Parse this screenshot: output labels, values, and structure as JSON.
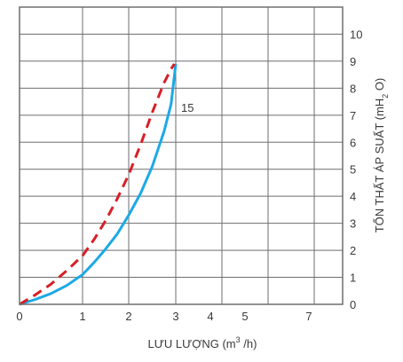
{
  "chart_data": {
    "type": "line",
    "title": "",
    "xlabel": "LƯU LƯỢNG (m³/h)",
    "xlabel_parts": {
      "pre": "LƯU LƯỢNG (m",
      "sup": "3",
      "post": " /h)"
    },
    "ylabel": "TỔN THẤT ÁP SUẤT (mH₂O)",
    "ylabel_parts": {
      "pre": "TỔN THẤT ÁP SUẤT (mH",
      "sub": "2",
      "post": " O)"
    },
    "x_scale": "nonlinear",
    "x_ticks": [
      {
        "label": "0",
        "value": 0
      },
      {
        "label": "1",
        "value": 1
      },
      {
        "label": "2",
        "value": 2
      },
      {
        "label": "3",
        "value": 3
      },
      {
        "label": "4",
        "value": 4
      },
      {
        "label": "5",
        "value": 5
      },
      {
        "label": "7",
        "value": 7
      }
    ],
    "y_ticks": [
      "0",
      "1",
      "2",
      "3",
      "4",
      "5",
      "6",
      "7",
      "8",
      "9",
      "10"
    ],
    "ylim": [
      0,
      11
    ],
    "y_axis_side": "right",
    "grid": true,
    "series": [
      {
        "name": "15",
        "color": "#1ca9e6",
        "style": "solid",
        "x": [
          0,
          0.25,
          0.5,
          0.75,
          1.0,
          1.25,
          1.5,
          1.75,
          2.0,
          2.25,
          2.5,
          2.75,
          2.9,
          3.0
        ],
        "y": [
          0,
          0.18,
          0.4,
          0.7,
          1.1,
          1.55,
          2.05,
          2.6,
          3.3,
          4.1,
          5.1,
          6.4,
          7.4,
          8.9
        ]
      },
      {
        "name": "",
        "color": "#d81f26",
        "style": "dashed",
        "x": [
          0,
          0.25,
          0.5,
          0.75,
          1.0,
          1.25,
          1.5,
          1.75,
          2.0,
          2.25,
          2.5,
          2.75,
          2.9,
          2.97
        ],
        "y": [
          0,
          0.35,
          0.75,
          1.25,
          1.8,
          2.4,
          3.1,
          3.9,
          4.8,
          5.9,
          7.1,
          8.2,
          8.7,
          8.9
        ]
      }
    ]
  },
  "colors": {
    "frame": "#6d6e71",
    "grid": "#6d6e71",
    "text": "#3a3a3a"
  }
}
